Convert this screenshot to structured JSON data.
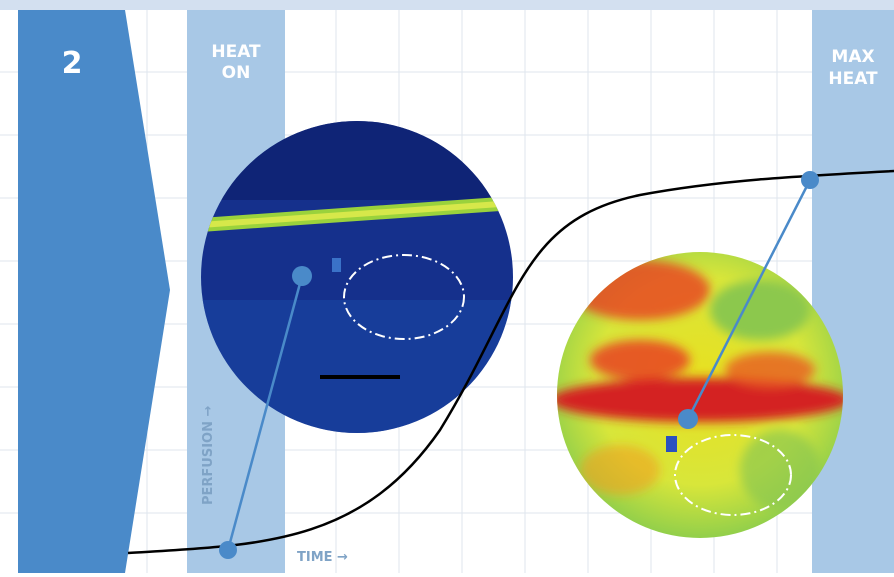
{
  "step": {
    "number": "2"
  },
  "bands": [
    {
      "label_lines": [
        "HEAT",
        "ON"
      ]
    },
    {
      "label_lines": [
        "MAX",
        "HEAT"
      ]
    }
  ],
  "axes": {
    "y_label": "PERFUSION →",
    "x_label": "TIME →"
  }
}
